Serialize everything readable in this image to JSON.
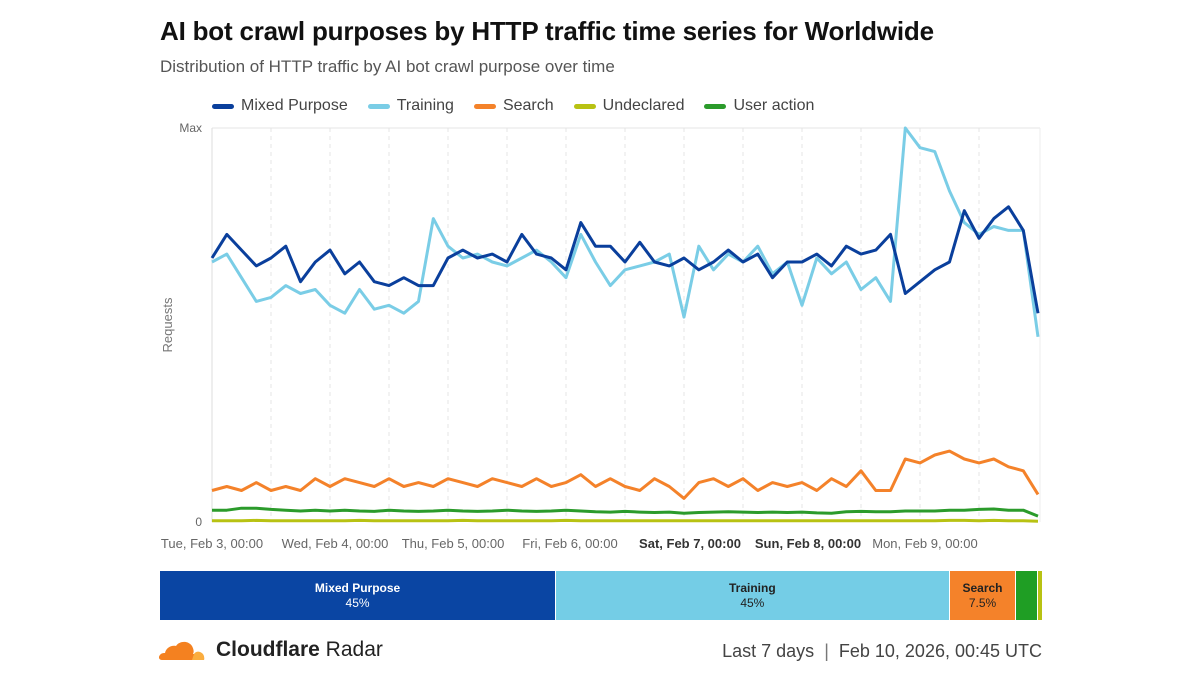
{
  "chart_data": {
    "type": "line",
    "title": "AI bot crawl purposes by HTTP traffic time series for Worldwide",
    "subtitle": "Distribution of HTTP traffic by AI bot crawl purpose over time",
    "ylabel": "Requests",
    "y_ticks": [
      "0",
      "Max"
    ],
    "ylim": [
      0,
      1
    ],
    "grid": true,
    "legend_position": "top",
    "x_tick_labels": [
      "Tue, Feb 3, 00:00",
      "Wed, Feb 4, 00:00",
      "Thu, Feb 5, 00:00",
      "Fri, Feb 6, 00:00",
      "Sat, Feb 7, 00:00",
      "Sun, Feb 8, 00:00",
      "Mon, Feb 9, 00:00"
    ],
    "x_tick_bold": [
      false,
      false,
      false,
      false,
      true,
      true,
      false
    ],
    "x_hours_from_start_step": 3,
    "series": [
      {
        "name": "Mixed Purpose",
        "color": "#0a3f9c",
        "values": [
          0.67,
          0.73,
          0.69,
          0.65,
          0.67,
          0.7,
          0.61,
          0.66,
          0.69,
          0.63,
          0.66,
          0.61,
          0.6,
          0.62,
          0.6,
          0.6,
          0.67,
          0.69,
          0.67,
          0.68,
          0.66,
          0.73,
          0.68,
          0.67,
          0.64,
          0.76,
          0.7,
          0.7,
          0.66,
          0.71,
          0.66,
          0.65,
          0.67,
          0.64,
          0.66,
          0.69,
          0.66,
          0.68,
          0.62,
          0.66,
          0.66,
          0.68,
          0.65,
          0.7,
          0.68,
          0.69,
          0.73,
          0.58,
          0.61,
          0.64,
          0.66,
          0.79,
          0.72,
          0.77,
          0.8,
          0.74,
          0.53
        ]
      },
      {
        "name": "Training",
        "color": "#7acde6",
        "values": [
          0.66,
          0.68,
          0.62,
          0.56,
          0.57,
          0.6,
          0.58,
          0.59,
          0.55,
          0.53,
          0.59,
          0.54,
          0.55,
          0.53,
          0.56,
          0.77,
          0.7,
          0.67,
          0.68,
          0.66,
          0.65,
          0.67,
          0.69,
          0.66,
          0.62,
          0.73,
          0.66,
          0.6,
          0.64,
          0.65,
          0.66,
          0.68,
          0.52,
          0.7,
          0.64,
          0.68,
          0.66,
          0.7,
          0.63,
          0.66,
          0.55,
          0.67,
          0.63,
          0.66,
          0.59,
          0.62,
          0.56,
          1.0,
          0.95,
          0.94,
          0.84,
          0.76,
          0.73,
          0.75,
          0.74,
          0.74,
          0.47
        ]
      },
      {
        "name": "Search",
        "color": "#f4822a",
        "values": [
          0.08,
          0.09,
          0.08,
          0.1,
          0.08,
          0.09,
          0.08,
          0.11,
          0.09,
          0.11,
          0.1,
          0.09,
          0.11,
          0.09,
          0.1,
          0.09,
          0.11,
          0.1,
          0.09,
          0.11,
          0.1,
          0.09,
          0.11,
          0.09,
          0.1,
          0.12,
          0.09,
          0.11,
          0.09,
          0.08,
          0.11,
          0.09,
          0.06,
          0.1,
          0.11,
          0.09,
          0.11,
          0.08,
          0.1,
          0.09,
          0.1,
          0.08,
          0.11,
          0.09,
          0.13,
          0.08,
          0.08,
          0.16,
          0.15,
          0.17,
          0.18,
          0.16,
          0.15,
          0.16,
          0.14,
          0.13,
          0.07
        ]
      },
      {
        "name": "Undeclared",
        "color": "#b8c213",
        "values": [
          0.003,
          0.003,
          0.003,
          0.004,
          0.003,
          0.003,
          0.003,
          0.003,
          0.003,
          0.003,
          0.004,
          0.003,
          0.003,
          0.003,
          0.003,
          0.003,
          0.003,
          0.004,
          0.003,
          0.003,
          0.003,
          0.003,
          0.003,
          0.003,
          0.004,
          0.003,
          0.003,
          0.003,
          0.003,
          0.003,
          0.003,
          0.003,
          0.003,
          0.003,
          0.003,
          0.003,
          0.003,
          0.003,
          0.003,
          0.003,
          0.003,
          0.003,
          0.003,
          0.003,
          0.003,
          0.003,
          0.003,
          0.003,
          0.003,
          0.003,
          0.004,
          0.004,
          0.003,
          0.004,
          0.003,
          0.003,
          0.002
        ]
      },
      {
        "name": "User action",
        "color": "#2b9b2b",
        "values": [
          0.03,
          0.03,
          0.035,
          0.035,
          0.032,
          0.03,
          0.028,
          0.03,
          0.028,
          0.03,
          0.028,
          0.027,
          0.03,
          0.028,
          0.027,
          0.028,
          0.03,
          0.028,
          0.027,
          0.028,
          0.03,
          0.028,
          0.027,
          0.028,
          0.03,
          0.028,
          0.026,
          0.025,
          0.027,
          0.025,
          0.024,
          0.025,
          0.022,
          0.024,
          0.025,
          0.026,
          0.025,
          0.024,
          0.025,
          0.024,
          0.025,
          0.023,
          0.022,
          0.026,
          0.027,
          0.026,
          0.026,
          0.028,
          0.028,
          0.028,
          0.03,
          0.03,
          0.032,
          0.033,
          0.03,
          0.03,
          0.015
        ]
      }
    ]
  },
  "share_bar": [
    {
      "name": "Mixed Purpose",
      "percent_label": "45%",
      "share": 45.0,
      "color": "#0a45a3",
      "text_color": "#ffffff"
    },
    {
      "name": "Training",
      "percent_label": "45%",
      "share": 44.7,
      "color": "#74cde6",
      "text_color": "#222222"
    },
    {
      "name": "Search",
      "percent_label": "7.5%",
      "share": 7.5,
      "color": "#f4822a",
      "text_color": "#222222"
    },
    {
      "name": "",
      "percent_label": "",
      "share": 2.3,
      "color": "#1f9e24",
      "text_color": "#222222"
    },
    {
      "name": "",
      "percent_label": "",
      "share": 0.5,
      "color": "#b8c213",
      "text_color": "#222222"
    }
  ],
  "footer": {
    "brand_bold": "Cloudflare",
    "brand_rest": " Radar",
    "range": "Last 7 days",
    "separator": "|",
    "timestamp": "Feb 10, 2026, 00:45 UTC"
  }
}
